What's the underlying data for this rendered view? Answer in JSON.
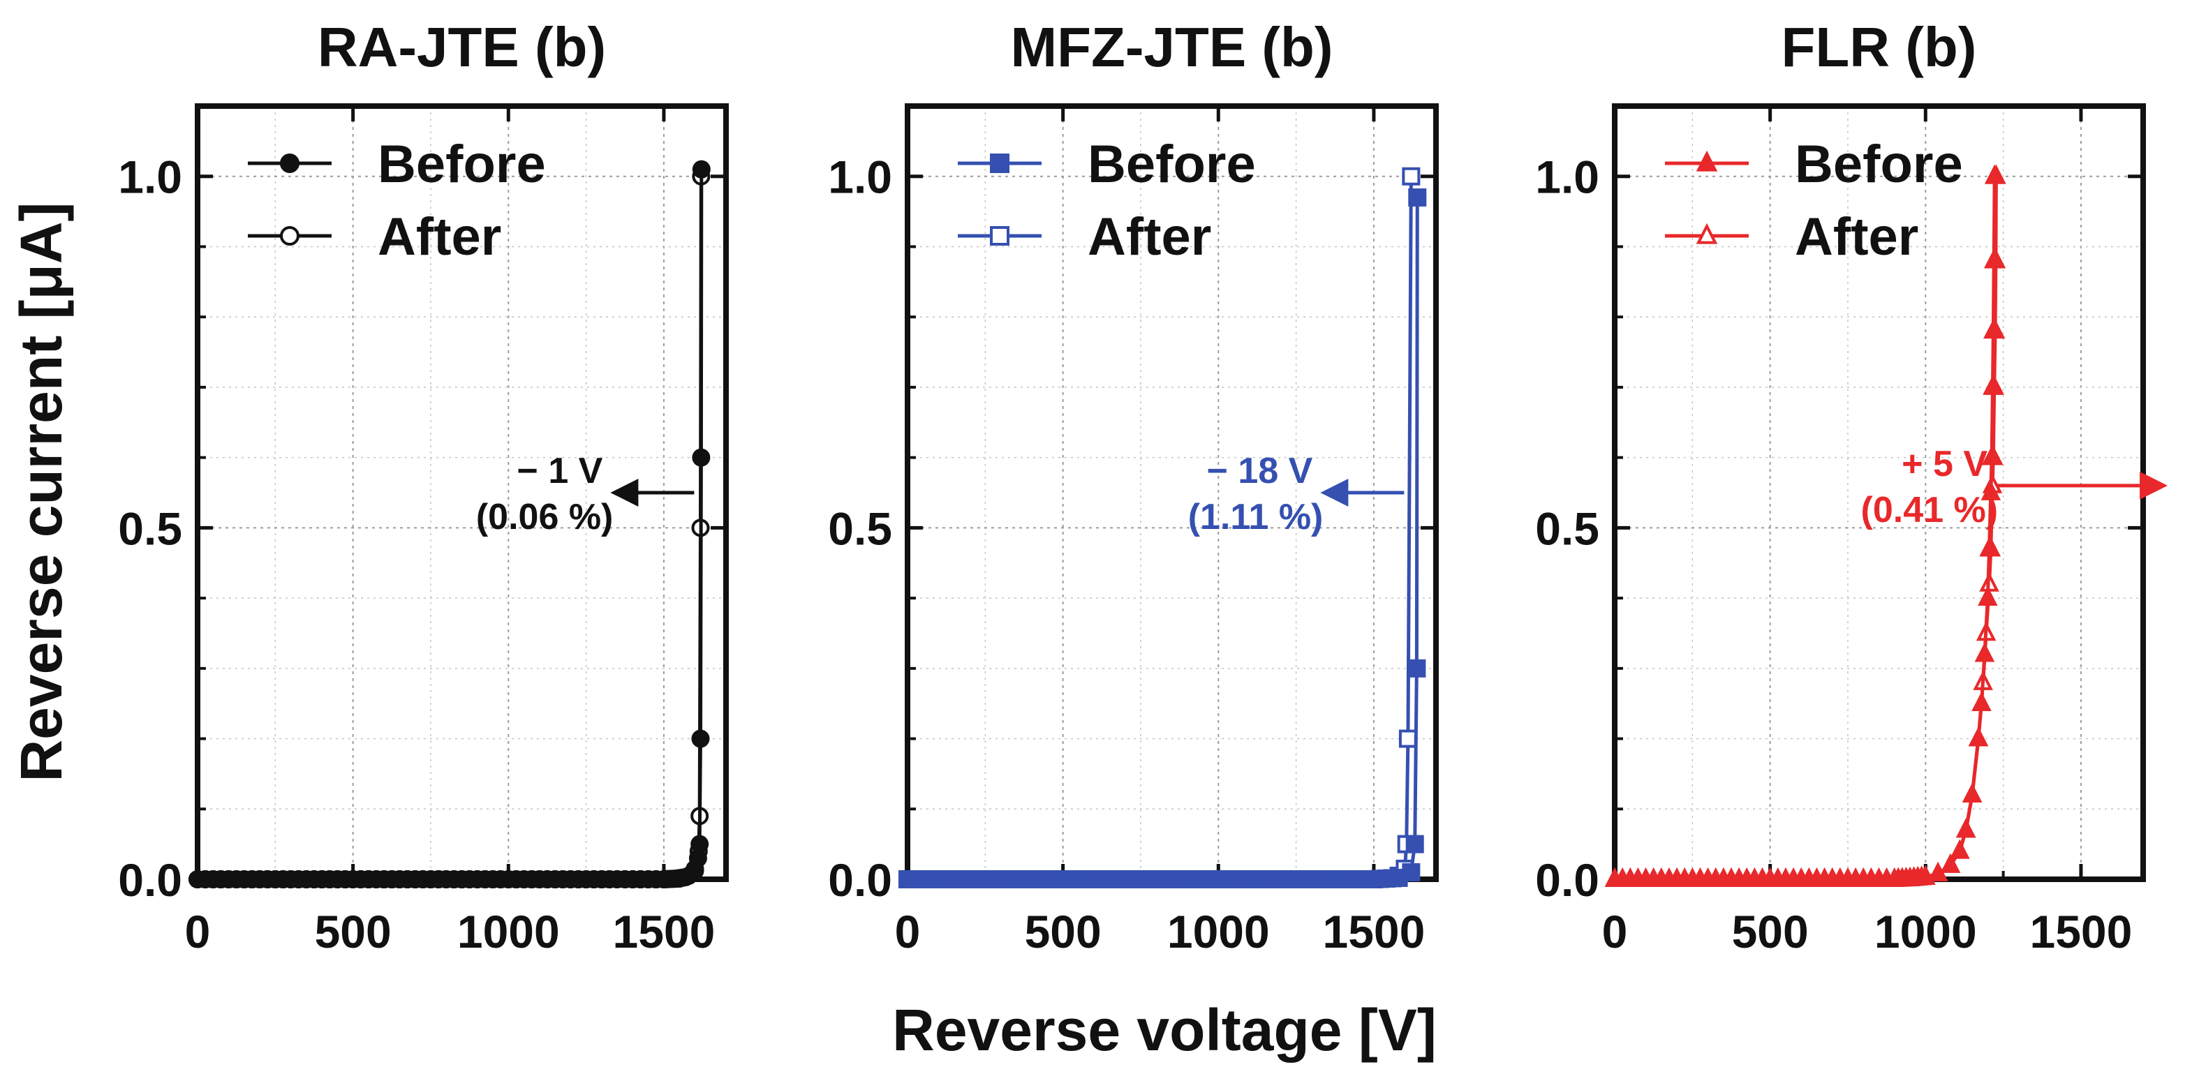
{
  "chart_data": [
    {
      "type": "line",
      "title": "RA-JTE (b)",
      "color": "#111111",
      "marker": "circle",
      "xlim": [
        0,
        1700
      ],
      "ylim": [
        0,
        1.1
      ],
      "xticks": [
        0,
        500,
        1000,
        1500
      ],
      "yticks": [
        0.0,
        0.5,
        1.0
      ],
      "xtick_labels": [
        "0",
        "500",
        "1000",
        "1500"
      ],
      "ytick_labels": [
        "0.0",
        "0.5",
        "1.0"
      ],
      "grid": true,
      "legend_position": "top-left",
      "series": [
        {
          "name": "Before",
          "fill": true,
          "points": [
            [
              0,
              0
            ],
            [
              100,
              0
            ],
            [
              200,
              0
            ],
            [
              300,
              0
            ],
            [
              400,
              0
            ],
            [
              500,
              0
            ],
            [
              600,
              0
            ],
            [
              700,
              0
            ],
            [
              800,
              0
            ],
            [
              900,
              0
            ],
            [
              1000,
              0
            ],
            [
              1100,
              0
            ],
            [
              1200,
              0
            ],
            [
              1300,
              0
            ],
            [
              1400,
              0
            ],
            [
              1500,
              0
            ],
            [
              1540,
              0.001
            ],
            [
              1570,
              0.003
            ],
            [
              1590,
              0.008
            ],
            [
              1600,
              0.015
            ],
            [
              1610,
              0.03
            ],
            [
              1615,
              0.05
            ],
            [
              1618,
              0.2
            ],
            [
              1620,
              0.6
            ],
            [
              1621,
              1.01
            ]
          ]
        },
        {
          "name": "After",
          "fill": false,
          "points": [
            [
              0,
              0
            ],
            [
              100,
              0
            ],
            [
              200,
              0
            ],
            [
              300,
              0
            ],
            [
              400,
              0
            ],
            [
              500,
              0
            ],
            [
              600,
              0
            ],
            [
              700,
              0
            ],
            [
              800,
              0
            ],
            [
              900,
              0
            ],
            [
              1000,
              0
            ],
            [
              1100,
              0
            ],
            [
              1200,
              0
            ],
            [
              1300,
              0
            ],
            [
              1400,
              0
            ],
            [
              1500,
              0
            ],
            [
              1550,
              0.001
            ],
            [
              1580,
              0.005
            ],
            [
              1600,
              0.012
            ],
            [
              1612,
              0.04
            ],
            [
              1615,
              0.09
            ],
            [
              1618,
              0.5
            ],
            [
              1620,
              1.0
            ]
          ]
        }
      ],
      "annotation": {
        "line1": "− 1 V",
        "line2": "(0.06 %)",
        "direction": "left",
        "x": 1620,
        "y": 0.55
      }
    },
    {
      "type": "line",
      "title": "MFZ-JTE (b)",
      "color": "#3550b0",
      "marker": "square",
      "xlim": [
        0,
        1700
      ],
      "ylim": [
        0,
        1.1
      ],
      "xticks": [
        0,
        500,
        1000,
        1500
      ],
      "yticks": [
        0.0,
        0.5,
        1.0
      ],
      "xtick_labels": [
        "0",
        "500",
        "1000",
        "1500"
      ],
      "ytick_labels": [
        "0.0",
        "0.5",
        "1.0"
      ],
      "grid": true,
      "legend_position": "top-left",
      "series": [
        {
          "name": "Before",
          "fill": true,
          "points": [
            [
              0,
              0
            ],
            [
              100,
              0
            ],
            [
              200,
              0
            ],
            [
              300,
              0
            ],
            [
              400,
              0
            ],
            [
              500,
              0
            ],
            [
              600,
              0
            ],
            [
              700,
              0
            ],
            [
              800,
              0
            ],
            [
              900,
              0
            ],
            [
              1000,
              0
            ],
            [
              1100,
              0
            ],
            [
              1200,
              0
            ],
            [
              1300,
              0
            ],
            [
              1400,
              0
            ],
            [
              1500,
              0
            ],
            [
              1580,
              0.002
            ],
            [
              1620,
              0.01
            ],
            [
              1632,
              0.05
            ],
            [
              1638,
              0.3
            ],
            [
              1640,
              0.97
            ]
          ]
        },
        {
          "name": "After",
          "fill": false,
          "points": [
            [
              0,
              0
            ],
            [
              100,
              0
            ],
            [
              200,
              0
            ],
            [
              300,
              0
            ],
            [
              400,
              0
            ],
            [
              500,
              0
            ],
            [
              600,
              0
            ],
            [
              700,
              0
            ],
            [
              800,
              0
            ],
            [
              900,
              0
            ],
            [
              1000,
              0
            ],
            [
              1100,
              0
            ],
            [
              1200,
              0
            ],
            [
              1300,
              0
            ],
            [
              1400,
              0
            ],
            [
              1500,
              0
            ],
            [
              1580,
              0.005
            ],
            [
              1600,
              0.015
            ],
            [
              1605,
              0.05
            ],
            [
              1610,
              0.2
            ],
            [
              1620,
              1.0
            ]
          ]
        }
      ],
      "annotation": {
        "line1": "− 18 V",
        "line2": "(1.11 %)",
        "direction": "left",
        "x": 1620,
        "y": 0.55
      }
    },
    {
      "type": "line",
      "title": "FLR (b)",
      "color": "#e8282a",
      "marker": "triangle",
      "xlim": [
        0,
        1700
      ],
      "ylim": [
        0,
        1.1
      ],
      "xticks": [
        0,
        500,
        1000,
        1500
      ],
      "yticks": [
        0.0,
        0.5,
        1.0
      ],
      "xtick_labels": [
        "0",
        "500",
        "1000",
        "1500"
      ],
      "ytick_labels": [
        "0.0",
        "0.5",
        "1.0"
      ],
      "grid": true,
      "legend_position": "top-left",
      "series": [
        {
          "name": "Before",
          "fill": true,
          "points": [
            [
              0,
              0
            ],
            [
              100,
              0
            ],
            [
              200,
              0
            ],
            [
              300,
              0
            ],
            [
              400,
              0
            ],
            [
              500,
              0
            ],
            [
              600,
              0
            ],
            [
              700,
              0
            ],
            [
              800,
              0
            ],
            [
              900,
              0
            ],
            [
              950,
              0.001
            ],
            [
              1000,
              0.003
            ],
            [
              1040,
              0.008
            ],
            [
              1080,
              0.02
            ],
            [
              1110,
              0.04
            ],
            [
              1130,
              0.07
            ],
            [
              1150,
              0.12
            ],
            [
              1170,
              0.2
            ],
            [
              1180,
              0.25
            ],
            [
              1190,
              0.32
            ],
            [
              1200,
              0.4
            ],
            [
              1205,
              0.47
            ],
            [
              1210,
              0.55
            ],
            [
              1213,
              0.6
            ],
            [
              1216,
              0.7
            ],
            [
              1218,
              0.78
            ],
            [
              1220,
              0.88
            ],
            [
              1222,
              1.0
            ]
          ]
        },
        {
          "name": "After",
          "fill": false,
          "points": [
            [
              0,
              0
            ],
            [
              100,
              0
            ],
            [
              200,
              0
            ],
            [
              300,
              0
            ],
            [
              400,
              0
            ],
            [
              500,
              0
            ],
            [
              600,
              0
            ],
            [
              700,
              0
            ],
            [
              800,
              0
            ],
            [
              900,
              0
            ],
            [
              950,
              0.001
            ],
            [
              1000,
              0.003
            ],
            [
              1040,
              0.008
            ],
            [
              1080,
              0.02
            ],
            [
              1110,
              0.04
            ],
            [
              1130,
              0.07
            ],
            [
              1150,
              0.12
            ],
            [
              1170,
              0.2
            ],
            [
              1185,
              0.28
            ],
            [
              1195,
              0.35
            ],
            [
              1205,
              0.42
            ],
            [
              1210,
              0.47
            ],
            [
              1215,
              0.56
            ],
            [
              1218,
              0.6
            ],
            [
              1221,
              0.7
            ],
            [
              1224,
              0.78
            ],
            [
              1226,
              0.88
            ],
            [
              1227,
              1.0
            ]
          ]
        }
      ],
      "annotation": {
        "line1": "+ 5 V",
        "line2": "(0.41 %)",
        "direction": "right",
        "x": 1105,
        "y": 0.56
      }
    }
  ],
  "labels": {
    "ylabel": "Reverse current [μA]",
    "xlabel": "Reverse voltage [V]"
  }
}
